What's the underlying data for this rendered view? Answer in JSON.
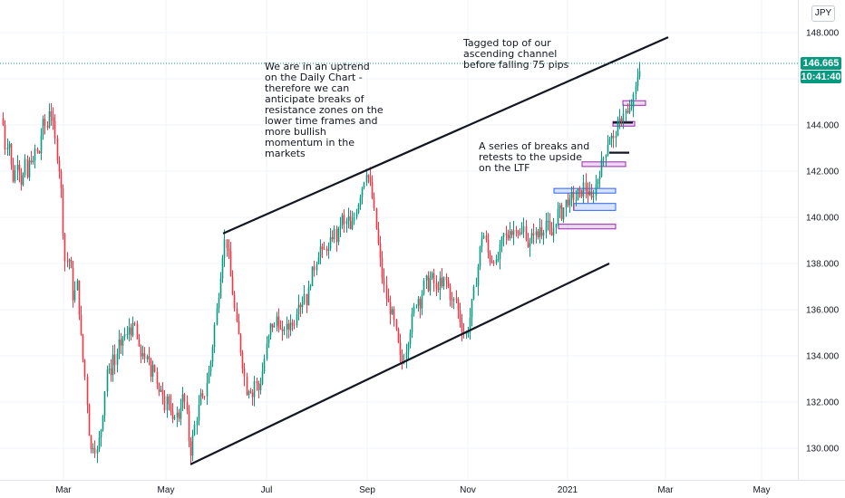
{
  "currency_badge": "JPY",
  "price_tag": {
    "price": "146.665",
    "countdown": "10:41:40",
    "color": "#089981"
  },
  "annotations": [
    {
      "id": "uptrend-note",
      "text": "We are in an uptrend\non the Daily Chart -\ntherefore we can\nanticipate breaks of\nresistance zones on the\nlower time frames and\nmore bullish\nmomentum in the\nmarkets"
    },
    {
      "id": "channel-top-note",
      "text": "Tagged top of our\nascending channel\nbefore falling 75 pips"
    },
    {
      "id": "breaks-note",
      "text": "A series of breaks and\nretests to the upside\non the LTF"
    }
  ],
  "chart_data": {
    "type": "candlestick",
    "title": "",
    "xlabel": "",
    "ylabel": "",
    "ylim": [
      128.8,
      149.2
    ],
    "y_ticks": [
      "130.000",
      "132.000",
      "134.000",
      "136.000",
      "138.000",
      "140.000",
      "142.000",
      "144.000",
      "146.000",
      "148.000"
    ],
    "x_ticks": [
      "Mar",
      "May",
      "Jul",
      "Sep",
      "Nov",
      "2021",
      "Mar",
      "May"
    ],
    "up_color": "#089981",
    "down_color": "#f23645",
    "current_price": 146.665,
    "series_path": [
      [
        0,
        144.4
      ],
      [
        3,
        144.1
      ],
      [
        6,
        142.8
      ],
      [
        9,
        143.6
      ],
      [
        12,
        142.2
      ],
      [
        15,
        141.5
      ],
      [
        18,
        142.6
      ],
      [
        21,
        142.1
      ],
      [
        24,
        141.3
      ],
      [
        27,
        142.4
      ],
      [
        30,
        141.6
      ],
      [
        33,
        142.8
      ],
      [
        36,
        142.2
      ],
      [
        39,
        143.1
      ],
      [
        42,
        142.5
      ],
      [
        45,
        143.6
      ],
      [
        48,
        144.2
      ],
      [
        51,
        143.7
      ],
      [
        54,
        144.8
      ],
      [
        57,
        144.3
      ],
      [
        60,
        143.4
      ],
      [
        63,
        142.6
      ],
      [
        66,
        141.8
      ],
      [
        68,
        140.5
      ],
      [
        70,
        138.9
      ],
      [
        72,
        137.8
      ],
      [
        75,
        138.4
      ],
      [
        78,
        137.6
      ],
      [
        81,
        136.2
      ],
      [
        84,
        137.4
      ],
      [
        87,
        135.9
      ],
      [
        90,
        134.2
      ],
      [
        93,
        133.3
      ],
      [
        96,
        131.8
      ],
      [
        98,
        130.6
      ],
      [
        100,
        129.9
      ],
      [
        103,
        130.3
      ],
      [
        106,
        129.7
      ],
      [
        109,
        130.4
      ],
      [
        112,
        131.1
      ],
      [
        115,
        132.4
      ],
      [
        118,
        133.6
      ],
      [
        121,
        133.0
      ],
      [
        124,
        134.1
      ],
      [
        127,
        133.5
      ],
      [
        130,
        134.7
      ],
      [
        133,
        134.2
      ],
      [
        136,
        135.1
      ],
      [
        139,
        134.7
      ],
      [
        142,
        135.3
      ],
      [
        145,
        135.0
      ],
      [
        148,
        135.4
      ],
      [
        151,
        134.6
      ],
      [
        154,
        133.9
      ],
      [
        157,
        134.3
      ],
      [
        160,
        133.5
      ],
      [
        163,
        134.1
      ],
      [
        166,
        133.3
      ],
      [
        169,
        133.9
      ],
      [
        172,
        132.8
      ],
      [
        175,
        132.2
      ],
      [
        178,
        132.9
      ],
      [
        181,
        131.8
      ],
      [
        184,
        132.4
      ],
      [
        187,
        131.6
      ],
      [
        190,
        131.0
      ],
      [
        193,
        131.7
      ],
      [
        196,
        131.2
      ],
      [
        199,
        131.9
      ],
      [
        202,
        132.3
      ],
      [
        205,
        131.6
      ],
      [
        207,
        130.9
      ],
      [
        209,
        129.6
      ],
      [
        212,
        130.4
      ],
      [
        215,
        131.1
      ],
      [
        218,
        131.6
      ],
      [
        221,
        132.2
      ],
      [
        224,
        132.0
      ],
      [
        227,
        132.8
      ],
      [
        230,
        133.3
      ],
      [
        233,
        134.0
      ],
      [
        236,
        135.2
      ],
      [
        239,
        136.1
      ],
      [
        242,
        137.2
      ],
      [
        245,
        138.4
      ],
      [
        248,
        139.1
      ],
      [
        251,
        138.6
      ],
      [
        254,
        137.4
      ],
      [
        257,
        136.5
      ],
      [
        260,
        135.4
      ],
      [
        263,
        134.8
      ],
      [
        266,
        134.0
      ],
      [
        269,
        133.2
      ],
      [
        272,
        132.4
      ],
      [
        275,
        132.8
      ],
      [
        278,
        132.2
      ],
      [
        281,
        133.1
      ],
      [
        284,
        132.4
      ],
      [
        287,
        132.9
      ],
      [
        290,
        133.5
      ],
      [
        293,
        134.3
      ],
      [
        296,
        134.8
      ],
      [
        299,
        135.5
      ],
      [
        302,
        135.1
      ],
      [
        305,
        135.8
      ],
      [
        308,
        135.2
      ],
      [
        311,
        134.8
      ],
      [
        314,
        135.4
      ],
      [
        317,
        135.0
      ],
      [
        320,
        135.6
      ],
      [
        323,
        135.2
      ],
      [
        326,
        135.9
      ],
      [
        329,
        136.5
      ],
      [
        332,
        136.1
      ],
      [
        335,
        136.8
      ],
      [
        338,
        136.3
      ],
      [
        341,
        137.1
      ],
      [
        344,
        137.6
      ],
      [
        347,
        137.9
      ],
      [
        350,
        138.4
      ],
      [
        353,
        138.7
      ],
      [
        356,
        138.3
      ],
      [
        359,
        138.8
      ],
      [
        362,
        138.5
      ],
      [
        365,
        139.1
      ],
      [
        368,
        139.4
      ],
      [
        371,
        139.0
      ],
      [
        374,
        139.6
      ],
      [
        377,
        140.0
      ],
      [
        380,
        139.5
      ],
      [
        383,
        140.1
      ],
      [
        386,
        139.4
      ],
      [
        389,
        139.8
      ],
      [
        392,
        140.3
      ],
      [
        395,
        140.7
      ],
      [
        398,
        141.2
      ],
      [
        401,
        141.6
      ],
      [
        404,
        142.1
      ],
      [
        406,
        141.7
      ],
      [
        409,
        141.2
      ],
      [
        412,
        140.3
      ],
      [
        415,
        139.4
      ],
      [
        418,
        138.4
      ],
      [
        421,
        137.5
      ],
      [
        424,
        136.8
      ],
      [
        427,
        136.3
      ],
      [
        430,
        136.0
      ],
      [
        433,
        135.7
      ],
      [
        436,
        135.1
      ],
      [
        439,
        134.4
      ],
      [
        442,
        133.6
      ],
      [
        445,
        133.9
      ],
      [
        448,
        134.4
      ],
      [
        451,
        135.0
      ],
      [
        454,
        135.6
      ],
      [
        457,
        136.1
      ],
      [
        460,
        136.6
      ],
      [
        463,
        136.3
      ],
      [
        466,
        136.9
      ],
      [
        469,
        137.3
      ],
      [
        472,
        137.0
      ],
      [
        475,
        137.5
      ],
      [
        478,
        137.2
      ],
      [
        481,
        136.7
      ],
      [
        484,
        137.3
      ],
      [
        487,
        136.9
      ],
      [
        490,
        137.4
      ],
      [
        493,
        137.1
      ],
      [
        496,
        136.6
      ],
      [
        499,
        136.2
      ],
      [
        502,
        136.6
      ],
      [
        505,
        135.9
      ],
      [
        508,
        135.4
      ],
      [
        511,
        135.0
      ],
      [
        514,
        134.9
      ],
      [
        517,
        135.4
      ],
      [
        520,
        136.2
      ],
      [
        523,
        136.9
      ],
      [
        526,
        137.6
      ],
      [
        529,
        138.6
      ],
      [
        532,
        139.4
      ],
      [
        535,
        139.0
      ],
      [
        538,
        138.4
      ],
      [
        541,
        138.1
      ],
      [
        544,
        138.3
      ],
      [
        547,
        137.9
      ],
      [
        550,
        138.4
      ],
      [
        553,
        138.9
      ],
      [
        556,
        139.3
      ],
      [
        559,
        139.0
      ],
      [
        562,
        139.6
      ],
      [
        565,
        139.2
      ],
      [
        568,
        139.7
      ],
      [
        571,
        139.4
      ],
      [
        574,
        139.1
      ],
      [
        577,
        139.6
      ],
      [
        580,
        139.2
      ],
      [
        583,
        138.6
      ],
      [
        586,
        139.1
      ],
      [
        589,
        139.5
      ],
      [
        592,
        139.0
      ],
      [
        595,
        139.6
      ],
      [
        598,
        139.3
      ],
      [
        601,
        139.9
      ],
      [
        604,
        139.6
      ],
      [
        607,
        139.0
      ],
      [
        610,
        139.5
      ],
      [
        613,
        140.0
      ],
      [
        616,
        140.4
      ],
      [
        619,
        140.1
      ],
      [
        622,
        140.5
      ],
      [
        625,
        140.8
      ],
      [
        628,
        140.6
      ],
      [
        631,
        141.0
      ],
      [
        634,
        140.7
      ],
      [
        637,
        141.1
      ],
      [
        640,
        140.9
      ],
      [
        643,
        141.4
      ],
      [
        646,
        141.2
      ],
      [
        649,
        141.0
      ],
      [
        652,
        140.7
      ],
      [
        655,
        141.2
      ],
      [
        658,
        141.6
      ],
      [
        661,
        142.0
      ],
      [
        664,
        142.4
      ],
      [
        667,
        142.8
      ],
      [
        670,
        143.3
      ],
      [
        673,
        143.6
      ],
      [
        676,
        143.2
      ],
      [
        679,
        143.8
      ],
      [
        682,
        144.0
      ],
      [
        685,
        144.3
      ],
      [
        688,
        144.7
      ],
      [
        691,
        144.4
      ],
      [
        694,
        144.6
      ],
      [
        697,
        144.9
      ],
      [
        700,
        145.4
      ],
      [
        703,
        146.2
      ],
      [
        706,
        146.665
      ]
    ],
    "channel_lines": [
      {
        "from": [
          246,
          139.3
        ],
        "to": [
          737,
          147.8
        ]
      },
      {
        "from": [
          210,
          129.3
        ],
        "to": [
          672,
          138.0
        ]
      }
    ],
    "zones": [
      {
        "x": [
          687,
          712
        ],
        "y": [
          144.85,
          145.05
        ],
        "color": "#9c27b0"
      },
      {
        "x": [
          676,
          700
        ],
        "y": [
          143.95,
          144.15
        ],
        "color": "#9c27b0"
      },
      {
        "x": [
          642,
          690
        ],
        "y": [
          142.2,
          142.4
        ],
        "color": "#9c27b0"
      },
      {
        "x": [
          611,
          679
        ],
        "y": [
          141.05,
          141.25
        ],
        "color": "#2962ff"
      },
      {
        "x": [
          633,
          679
        ],
        "y": [
          140.3,
          140.6
        ],
        "color": "#2962ff"
      },
      {
        "x": [
          616,
          679
        ],
        "y": [
          139.5,
          139.7
        ],
        "color": "#9c27b0"
      }
    ],
    "level_marks": [
      {
        "x": [
          676,
          698
        ],
        "y": 144.1
      },
      {
        "x": [
          672,
          694
        ],
        "y": 142.8
      }
    ]
  }
}
